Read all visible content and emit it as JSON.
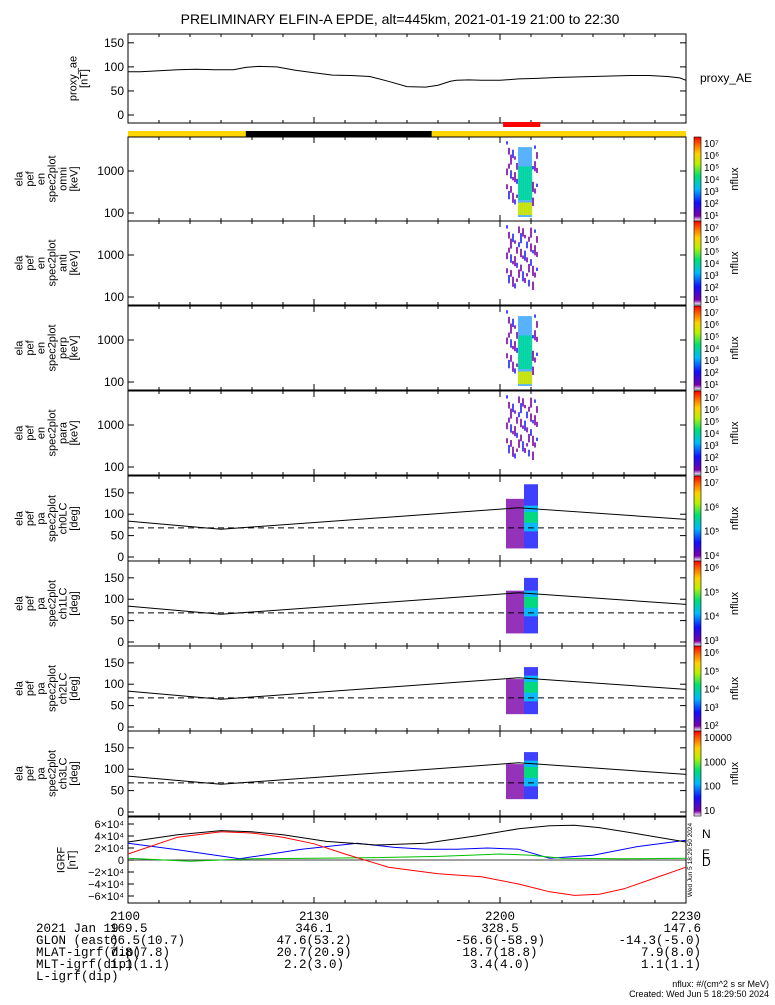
{
  "title": "PRELIMINARY ELFIN-A EPDE, alt=445km, 2021-01-19 21:00 to 22:30",
  "colors": {
    "ae_line": "#000000",
    "bar_yellow": "#ffd700",
    "bar_black": "#000000",
    "sci_red": "#ff0000",
    "N": "#0000ff",
    "E": "#00c000",
    "D": "#ff0000",
    "F": "#000000"
  },
  "chart_data": [
    {
      "id": "proxy_ae",
      "type": "line",
      "ylabel": [
        "proxy_ae",
        "[nT]"
      ],
      "yticks": [
        "150",
        "100",
        "50",
        "0"
      ],
      "ylim": [
        0,
        160
      ],
      "legend": "proxy_AE",
      "x_minutes": [
        0,
        2,
        5,
        8,
        11,
        14,
        17,
        19,
        21,
        24,
        27,
        30,
        33,
        36,
        39,
        42,
        45,
        48,
        50,
        52,
        53,
        55,
        57,
        60,
        63,
        66,
        69,
        72,
        75,
        78,
        81,
        84,
        87,
        89,
        90
      ],
      "y_values": [
        90,
        90,
        92,
        94,
        95,
        94,
        94,
        99,
        101,
        100,
        93,
        88,
        83,
        82,
        80,
        70,
        59,
        58,
        62,
        70,
        72,
        73,
        72,
        72,
        75,
        76,
        78,
        79,
        80,
        81,
        82,
        82,
        80,
        77,
        72
      ]
    },
    {
      "id": "ela_pef_en_spec2plot_omni",
      "type": "heatmap",
      "ylabel": [
        "ela",
        "pef",
        "en",
        "spec2plot",
        "omni",
        "[keV]"
      ],
      "yticks": [
        "1000",
        "100"
      ],
      "colorbar": {
        "label": "nflux",
        "ticks": [
          "10^7",
          "10^6",
          "10^5",
          "10^4",
          "10^3",
          "10^2",
          "10^1"
        ]
      },
      "blob": {
        "x_start_min": 61,
        "x_end_min": 66,
        "energy_range_keV": [
          60,
          3000
        ],
        "peak_nflux": "10^6"
      }
    },
    {
      "id": "ela_pef_en_spec2plot_anti",
      "type": "heatmap",
      "ylabel": [
        "ela",
        "pef",
        "en",
        "spec2plot",
        "anti",
        "[keV]"
      ],
      "yticks": [
        "1000",
        "100"
      ],
      "colorbar": {
        "label": "nflux",
        "ticks": [
          "10^7",
          "10^6",
          "10^5",
          "10^4",
          "10^3",
          "10^2",
          "10^1"
        ]
      },
      "blob": {
        "x_start_min": 61,
        "x_end_min": 66,
        "energy_range_keV": [
          60,
          3000
        ],
        "peak_nflux": "10^3"
      }
    },
    {
      "id": "ela_pef_en_spec2plot_perp",
      "type": "heatmap",
      "ylabel": [
        "ela",
        "pef",
        "en",
        "spec2plot",
        "perp",
        "[keV]"
      ],
      "yticks": [
        "1000",
        "100"
      ],
      "colorbar": {
        "label": "nflux",
        "ticks": [
          "10^7",
          "10^6",
          "10^5",
          "10^4",
          "10^3",
          "10^2",
          "10^1"
        ]
      },
      "blob": {
        "x_start_min": 61,
        "x_end_min": 66,
        "energy_range_keV": [
          60,
          3000
        ],
        "peak_nflux": "10^6"
      }
    },
    {
      "id": "ela_pef_en_spec2plot_para",
      "type": "heatmap",
      "ylabel": [
        "ela",
        "pef",
        "en",
        "spec2plot",
        "para",
        "[keV]"
      ],
      "yticks": [
        "1000",
        "100"
      ],
      "colorbar": {
        "label": "nflux",
        "ticks": [
          "10^7",
          "10^6",
          "10^5",
          "10^4",
          "10^3",
          "10^2",
          "10^1"
        ]
      },
      "blob": {
        "x_start_min": 61,
        "x_end_min": 66,
        "energy_range_keV": [
          60,
          3000
        ],
        "peak_nflux": "10^3"
      }
    },
    {
      "id": "ela_pef_pa_spec2plot_ch0LC",
      "type": "heatmap",
      "ylabel": [
        "ela",
        "pef",
        "pa",
        "spec2plot",
        "ch0LC",
        "[deg]"
      ],
      "yticks": [
        "150",
        "100",
        "50",
        "0"
      ],
      "colorbar": {
        "label": "nflux",
        "ticks": [
          "10^7",
          "10^6",
          "10^5",
          "10^4"
        ]
      },
      "losscone_deg": {
        "solid_x_min": [
          0,
          15,
          63,
          90
        ],
        "solid_y_deg": [
          84,
          65,
          115,
          88
        ],
        "dashed_y_deg": 68
      },
      "blob": {
        "x_start_min": 61,
        "x_end_min": 66,
        "pa_range_deg": [
          20,
          170
        ]
      }
    },
    {
      "id": "ela_pef_pa_spec2plot_ch1LC",
      "type": "heatmap",
      "ylabel": [
        "ela",
        "pef",
        "pa",
        "spec2plot",
        "ch1LC",
        "[deg]"
      ],
      "yticks": [
        "150",
        "100",
        "50",
        "0"
      ],
      "colorbar": {
        "label": "nflux",
        "ticks": [
          "10^6",
          "10^5",
          "10^4",
          "10^3"
        ]
      },
      "losscone_deg": {
        "solid_x_min": [
          0,
          15,
          63,
          90
        ],
        "solid_y_deg": [
          84,
          65,
          115,
          88
        ],
        "dashed_y_deg": 68
      },
      "blob": {
        "x_start_min": 61,
        "x_end_min": 66,
        "pa_range_deg": [
          20,
          150
        ]
      }
    },
    {
      "id": "ela_pef_pa_spec2plot_ch2LC",
      "type": "heatmap",
      "ylabel": [
        "ela",
        "pef",
        "pa",
        "spec2plot",
        "ch2LC",
        "[deg]"
      ],
      "yticks": [
        "150",
        "100",
        "50",
        "0"
      ],
      "colorbar": {
        "label": "nflux",
        "ticks": [
          "10^6",
          "10^5",
          "10^4",
          "10^3",
          "10^2"
        ]
      },
      "losscone_deg": {
        "solid_x_min": [
          0,
          15,
          63,
          90
        ],
        "solid_y_deg": [
          84,
          65,
          115,
          88
        ],
        "dashed_y_deg": 68
      },
      "blob": {
        "x_start_min": 61,
        "x_end_min": 66,
        "pa_range_deg": [
          30,
          140
        ]
      }
    },
    {
      "id": "ela_pef_pa_spec2plot_ch3LC",
      "type": "heatmap",
      "ylabel": [
        "ela",
        "pef",
        "pa",
        "spec2plot",
        "ch3LC",
        "[deg]"
      ],
      "yticks": [
        "150",
        "100",
        "50",
        "0"
      ],
      "colorbar": {
        "label": "nflux",
        "ticks": [
          "10000",
          "1000",
          "100",
          "10"
        ]
      },
      "losscone_deg": {
        "solid_x_min": [
          0,
          15,
          63,
          90
        ],
        "solid_y_deg": [
          84,
          65,
          115,
          88
        ],
        "dashed_y_deg": 68
      },
      "blob": {
        "x_start_min": 61,
        "x_end_min": 66,
        "pa_range_deg": [
          30,
          140
        ]
      }
    },
    {
      "id": "igrf",
      "type": "line",
      "ylabel": [
        "IGRF",
        "[nT]"
      ],
      "yticks": [
        "6×10⁴",
        "4×10⁴",
        "2×10⁴",
        "0",
        "−2×10⁴",
        "−4×10⁴",
        "−6×10⁴"
      ],
      "ylim": [
        -65000,
        65000
      ],
      "legend": [
        "N",
        "E",
        "D"
      ],
      "side_label": "Wed Jun 5 18:29:50 2024",
      "series": [
        {
          "name": "N",
          "x_minutes": [
            0,
            8,
            18,
            28,
            37,
            43,
            48,
            53,
            58,
            63,
            68,
            75,
            82,
            90
          ],
          "y_values": [
            28000,
            17000,
            2000,
            18000,
            28000,
            21000,
            18000,
            18000,
            20000,
            18000,
            3000,
            8000,
            22000,
            33000
          ]
        },
        {
          "name": "E",
          "x_minutes": [
            0,
            10,
            20,
            30,
            40,
            50,
            55,
            60,
            65,
            70,
            80,
            90
          ],
          "y_values": [
            3000,
            -2000,
            2000,
            3000,
            4000,
            6000,
            8000,
            10000,
            8000,
            3000,
            2000,
            3000
          ]
        },
        {
          "name": "D",
          "x_minutes": [
            0,
            8,
            15,
            20,
            25,
            30,
            35,
            42,
            50,
            57,
            63,
            68,
            72,
            76,
            80,
            85,
            90
          ],
          "y_values": [
            10000,
            38000,
            47000,
            45000,
            38000,
            27000,
            10000,
            -12000,
            -23000,
            -28000,
            -40000,
            -53000,
            -59000,
            -57000,
            -48000,
            -30000,
            -12000
          ]
        },
        {
          "name": "F",
          "x_minutes": [
            0,
            8,
            15,
            20,
            25,
            32,
            40,
            48,
            56,
            63,
            68,
            72,
            76,
            82,
            90
          ],
          "y_values": [
            30000,
            42000,
            49000,
            47000,
            42000,
            31000,
            25000,
            28000,
            40000,
            52000,
            57000,
            58000,
            54000,
            44000,
            30000
          ]
        }
      ]
    }
  ],
  "x_axis": {
    "ticks": [
      {
        "time": "2100",
        "glon": "169.5",
        "mlat": "66.5(10.7)",
        "mlt": "7.8(7.8)",
        "l": "1.1(1.1)"
      },
      {
        "time": "2130",
        "glon": "346.1",
        "mlat": "47.6(53.2)",
        "mlt": "20.7(20.9)",
        "l": "2.2(3.0)"
      },
      {
        "time": "2200",
        "glon": "328.5",
        "mlat": "-56.6(-58.9)",
        "mlt": "18.7(18.8)",
        "l": "3.4(4.0)"
      },
      {
        "time": "2230",
        "glon": "147.6",
        "mlat": "-14.3(-5.0)",
        "mlt": "7.9(8.0)",
        "l": "1.1(1.1)"
      }
    ],
    "row_labels": {
      "time": "2021 Jan 19",
      "glon": "GLON (east)",
      "mlat": "MLAT-igrf(dip)",
      "mlt": "MLT-igrf(dip)",
      "l": "L-igrf(dip)"
    }
  },
  "status_bar": {
    "segments": [
      {
        "color": "yellow",
        "from_min": 0,
        "to_min": 19
      },
      {
        "color": "black",
        "from_min": 19,
        "to_min": 49
      },
      {
        "color": "yellow",
        "from_min": 49,
        "to_min": 90
      }
    ],
    "science_zone": {
      "from_min": 60.5,
      "to_min": 66.5
    }
  },
  "credits": {
    "units": "nflux: #/(cm^2 s sr MeV)",
    "created": "Created: Wed Jun  5 18:29:50 2024"
  }
}
